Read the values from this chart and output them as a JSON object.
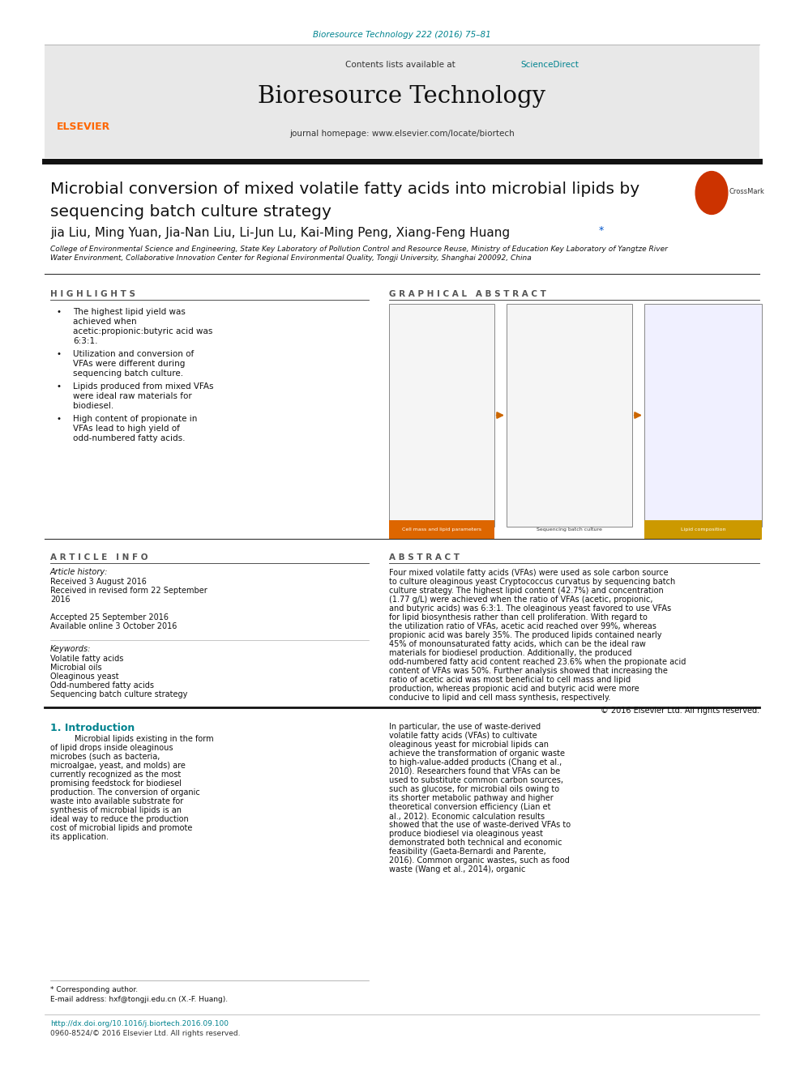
{
  "page_width": 9.92,
  "page_height": 13.23,
  "background_color": "#ffffff",
  "top_citation": "Bioresource Technology 222 (2016) 75–81",
  "top_citation_color": "#00838f",
  "journal_header_bg": "#e8e8e8",
  "journal_name": "Bioresource Technology",
  "contents_line": "Contents lists available at ScienceDirect",
  "sciencedirect_color": "#00838f",
  "journal_homepage": "journal homepage: www.elsevier.com/locate/biortech",
  "title_line1": "Microbial conversion of mixed volatile fatty acids into microbial lipids by",
  "title_line2": "sequencing batch culture strategy",
  "title_fontsize": 14.5,
  "authors": "jia Liu, Ming Yuan, Jia-Nan Liu, Li-Jun Lu, Kai-Ming Peng, Xiang-Feng Huang",
  "authors_star": "*",
  "affiliation_line1": "College of Environmental Science and Engineering, State Key Laboratory of Pollution Control and Resource Reuse, Ministry of Education Key Laboratory of Yangtze River",
  "affiliation_line2": "Water Environment, Collaborative Innovation Center for Regional Environmental Quality, Tongji University, Shanghai 200092, China",
  "section_highlights": "H I G H L I G H T S",
  "highlights_color": "#555555",
  "highlights_items": [
    "The highest lipid yield was achieved when acetic:propionic:butyric acid was 6:3:1.",
    "Utilization and conversion of VFAs were different during sequencing batch culture.",
    "Lipids produced from mixed VFAs were ideal raw materials for biodiesel.",
    "High content of propionate in VFAs lead to high yield of odd-numbered fatty acids."
  ],
  "section_graphical": "G R A P H I C A L   A B S T R A C T",
  "section_article_info": "A R T I C L E   I N F O",
  "section_abstract": "A B S T R A C T",
  "article_history_label": "Article history:",
  "received": "Received 3 August 2016",
  "received_revised": "Received in revised form 22 September",
  "received_revised2": "2016",
  "accepted": "Accepted 25 September 2016",
  "available": "Available online 3 October 2016",
  "keywords_label": "Keywords:",
  "keywords": [
    "Volatile fatty acids",
    "Microbial oils",
    "Oleaginous yeast",
    "Odd-numbered fatty acids",
    "Sequencing batch culture strategy"
  ],
  "abstract_text": "Four mixed volatile fatty acids (VFAs) were used as sole carbon source to culture oleaginous yeast Cryptococcus curvatus by sequencing batch culture strategy. The highest lipid content (42.7%) and concentration (1.77 g/L) were achieved when the ratio of VFAs (acetic, propionic, and butyric acids) was 6:3:1. The oleaginous yeast favored to use VFAs for lipid biosynthesis rather than cell proliferation. With regard to the utilization ratio of VFAs, acetic acid reached over 99%, whereas propionic acid was barely 35%. The produced lipids contained nearly 45% of monounsaturated fatty acids, which can be the ideal raw materials for biodiesel production. Additionally, the produced odd-numbered fatty acid content reached 23.6% when the propionate acid content of VFAs was 50%. Further analysis showed that increasing the ratio of acetic acid was most beneficial to cell mass and lipid production, whereas propionic acid and butyric acid were more conducive to lipid and cell mass synthesis, respectively.",
  "copyright": "© 2016 Elsevier Ltd. All rights reserved.",
  "intro_heading": "1. Introduction",
  "intro_col1": "Microbial lipids existing in the form of lipid drops inside oleaginous microbes (such as bacteria, microalgae, yeast, and molds) are currently recognized as the most promising feedstock for biodiesel production. The conversion of organic waste into available substrate for synthesis of microbial lipids is an ideal way to reduce the production cost of microbial lipids and promote its application.",
  "intro_col2": "In particular, the use of waste-derived volatile fatty acids (VFAs) to cultivate oleaginous yeast for microbial lipids can achieve the transformation of organic waste to high-value-added products (Chang et al., 2010). Researchers found that VFAs can be used to substitute common carbon sources, such as glucose, for microbial oils owing to its shorter metabolic pathway and higher theoretical conversion efficiency (Lian et al., 2012). Economic calculation results showed that the use of waste-derived VFAs to produce biodiesel via oleaginous yeast demonstrated both technical and economic feasibility (Gaeta-Bernardi and Parente, 2016). Common organic wastes, such as food waste (Wang et al., 2014), organic",
  "footnote_star": "* Corresponding author.",
  "footnote_email": "E-mail address: hxf@tongji.edu.cn (X.-F. Huang).",
  "doi_line": "http://dx.doi.org/10.1016/j.biortech.2016.09.100",
  "issn_line": "0960-8524/© 2016 Elsevier Ltd. All rights reserved.",
  "elsevier_orange": "#ff6600",
  "link_color": "#00838f",
  "separator_color": "#cccccc",
  "dark_separator": "#222222"
}
